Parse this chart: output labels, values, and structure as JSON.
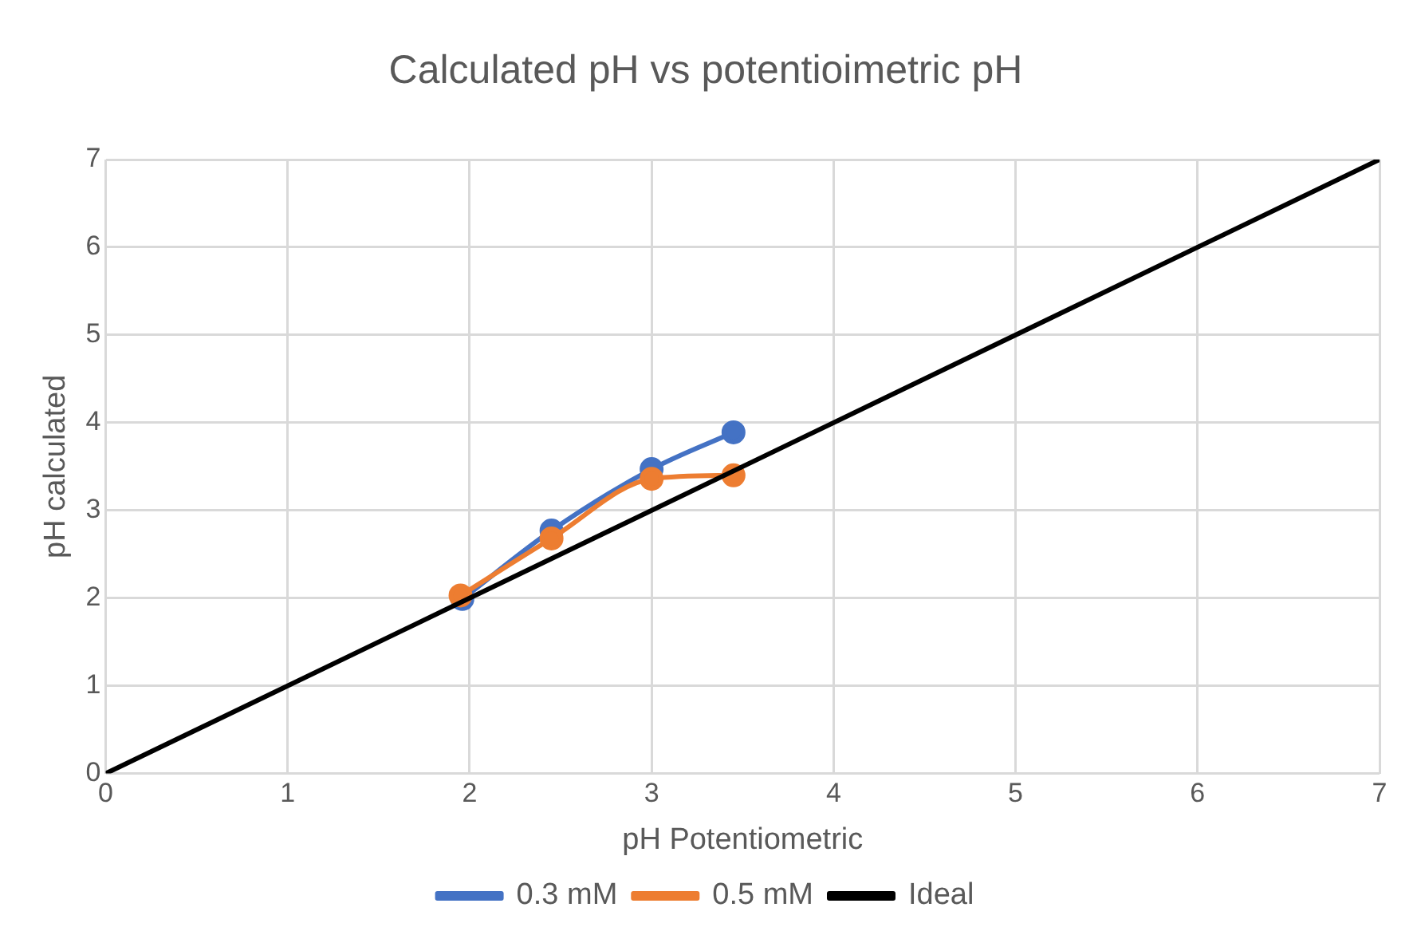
{
  "chart_data": {
    "type": "line",
    "title": "Calculated pH vs potentioimetric pH",
    "xlabel": "pH Potentiometric",
    "ylabel": "pH calculated",
    "series": [
      {
        "name": "0.3 mM",
        "color": "#4472c4",
        "x": [
          1.96,
          2.45,
          3.0,
          3.45
        ],
        "values": [
          1.99,
          2.77,
          3.47,
          3.89
        ],
        "marker": "circle"
      },
      {
        "name": "0.5 mM",
        "color": "#ed7d31",
        "x": [
          1.95,
          2.45,
          3.0,
          3.45
        ],
        "values": [
          2.03,
          2.68,
          3.36,
          3.4
        ],
        "marker": "circle"
      },
      {
        "name": "Ideal",
        "color": "#000000",
        "x": [
          0,
          7
        ],
        "values": [
          0,
          7
        ],
        "marker": "none"
      }
    ],
    "xlim": [
      0,
      7
    ],
    "xticks": [
      0,
      1,
      2,
      3,
      4,
      5,
      6,
      7
    ],
    "ylim": [
      0,
      7
    ],
    "yticks": [
      0,
      1,
      2,
      3,
      4,
      5,
      6,
      7
    ],
    "grid": true,
    "legend": "bottom"
  }
}
